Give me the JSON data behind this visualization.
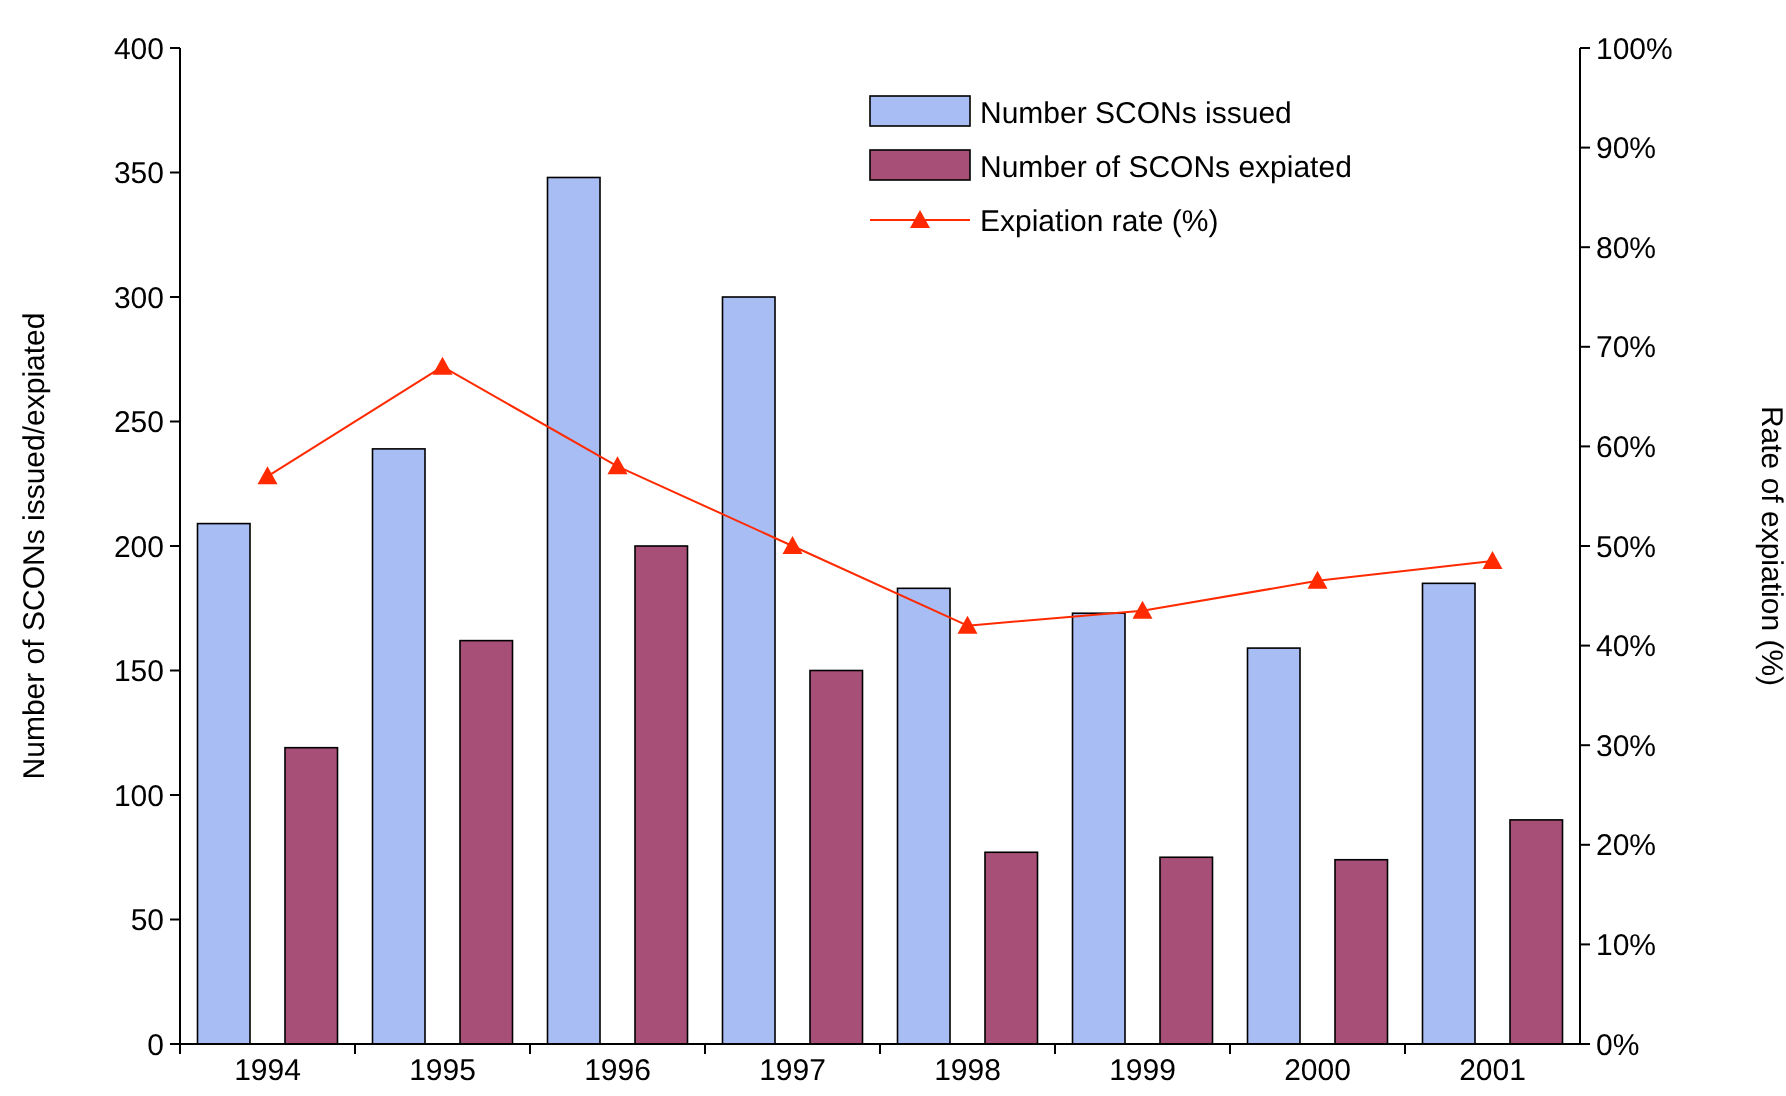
{
  "chart_data": {
    "type": "bar",
    "categories": [
      "1994",
      "1995",
      "1996",
      "1997",
      "1998",
      "1999",
      "2000",
      "2001"
    ],
    "series": [
      {
        "name": "Number SCONs issued",
        "color": "#a9bdf5",
        "values": [
          209,
          239,
          348,
          300,
          183,
          173,
          159,
          185
        ]
      },
      {
        "name": "Number of SCONs expiated",
        "color": "#a84f78",
        "values": [
          119,
          162,
          200,
          150,
          77,
          75,
          74,
          90
        ]
      },
      {
        "name": "Expiation rate (%)",
        "type": "line",
        "axis": "y2",
        "color": "#ff2a00",
        "marker": "triangle",
        "values": [
          57,
          68,
          58,
          50,
          42,
          43.5,
          46.5,
          48.5
        ]
      }
    ],
    "ylabel": "Number of SCONs issued/expiated",
    "y2label": "Rate of expiation (%)",
    "ylim": [
      0,
      400
    ],
    "yticks": [
      0,
      50,
      100,
      150,
      200,
      250,
      300,
      350,
      400
    ],
    "y2lim": [
      0,
      100
    ],
    "y2ticks": [
      {
        "value": 0,
        "label": "0%"
      },
      {
        "value": 10,
        "label": "10%"
      },
      {
        "value": 20,
        "label": "20%"
      },
      {
        "value": 30,
        "label": "30%"
      },
      {
        "value": 40,
        "label": "40%"
      },
      {
        "value": 50,
        "label": "50%"
      },
      {
        "value": 60,
        "label": "60%"
      },
      {
        "value": 70,
        "label": "70%"
      },
      {
        "value": 80,
        "label": "80%"
      },
      {
        "value": 90,
        "label": "90%"
      },
      {
        "value": 100,
        "label": "100%"
      }
    ],
    "legend": "top right",
    "grid": false
  }
}
